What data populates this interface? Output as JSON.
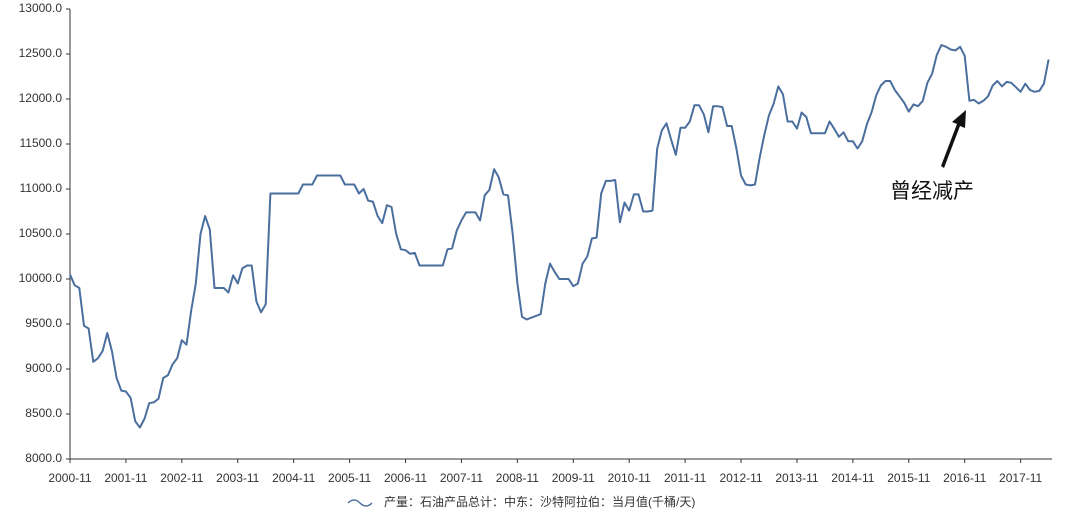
{
  "chart_data": {
    "type": "line",
    "categories": [
      "2000-11",
      null,
      null,
      null,
      null,
      null,
      null,
      null,
      null,
      null,
      null,
      null,
      "2001-11",
      null,
      null,
      null,
      null,
      null,
      null,
      null,
      null,
      null,
      null,
      null,
      "2002-11",
      null,
      null,
      null,
      null,
      null,
      null,
      null,
      null,
      null,
      null,
      null,
      "2003-11",
      null,
      null,
      null,
      null,
      null,
      null,
      null,
      null,
      null,
      null,
      null,
      "2004-11",
      null,
      null,
      null,
      null,
      null,
      null,
      null,
      null,
      null,
      null,
      null,
      "2005-11",
      null,
      null,
      null,
      null,
      null,
      null,
      null,
      null,
      null,
      null,
      null,
      "2006-11",
      null,
      null,
      null,
      null,
      null,
      null,
      null,
      null,
      null,
      null,
      null,
      "2007-11",
      null,
      null,
      null,
      null,
      null,
      null,
      null,
      null,
      null,
      null,
      null,
      "2008-11",
      null,
      null,
      null,
      null,
      null,
      null,
      null,
      null,
      null,
      null,
      null,
      "2009-11",
      null,
      null,
      null,
      null,
      null,
      null,
      null,
      null,
      null,
      null,
      null,
      "2010-11",
      null,
      null,
      null,
      null,
      null,
      null,
      null,
      null,
      null,
      null,
      null,
      "2011-11",
      null,
      null,
      null,
      null,
      null,
      null,
      null,
      null,
      null,
      null,
      null,
      "2012-11",
      null,
      null,
      null,
      null,
      null,
      null,
      null,
      null,
      null,
      null,
      null,
      "2013-11",
      null,
      null,
      null,
      null,
      null,
      null,
      null,
      null,
      null,
      null,
      null,
      "2014-11",
      null,
      null,
      null,
      null,
      null,
      null,
      null,
      null,
      null,
      null,
      null,
      "2015-11",
      null,
      null,
      null,
      null,
      null,
      null,
      null,
      null,
      null,
      null,
      null,
      "2016-11",
      null,
      null,
      null,
      null,
      null,
      null,
      null,
      null,
      null,
      null,
      null,
      "2017-11",
      null,
      null,
      null,
      null,
      null,
      null
    ],
    "series": [
      {
        "name": "产量：石油产品总计：中东：沙特阿拉伯：当月值(千桶/天)",
        "color": "#4a6f9e",
        "values": [
          10050,
          9930,
          9900,
          9480,
          9450,
          9080,
          9120,
          9200,
          9400,
          9200,
          8900,
          8760,
          8750,
          8680,
          8420,
          8350,
          8450,
          8620,
          8630,
          8670,
          8900,
          8930,
          9050,
          9120,
          9320,
          9270,
          9650,
          9950,
          10500,
          10700,
          10550,
          9900,
          9900,
          9900,
          9850,
          10040,
          9950,
          10120,
          10150,
          10150,
          9750,
          9630,
          9720,
          10950,
          10950,
          10950,
          10950,
          10950,
          10950,
          10950,
          11050,
          11050,
          11050,
          11150,
          11150,
          11150,
          11150,
          11150,
          11150,
          11050,
          11050,
          11050,
          10950,
          11000,
          10870,
          10860,
          10700,
          10620,
          10820,
          10800,
          10500,
          10330,
          10320,
          10280,
          10290,
          10150,
          10150,
          10150,
          10150,
          10150,
          10150,
          10330,
          10340,
          10540,
          10650,
          10740,
          10740,
          10740,
          10650,
          10930,
          10990,
          11220,
          11130,
          10940,
          10930,
          10500,
          9950,
          9580,
          9550,
          9570,
          9590,
          9610,
          9950,
          10170,
          10080,
          10000,
          10000,
          10000,
          9920,
          9950,
          10170,
          10250,
          10450,
          10460,
          10950,
          11090,
          11090,
          11100,
          10630,
          10850,
          10760,
          10940,
          10940,
          10750,
          10750,
          10760,
          11450,
          11650,
          11730,
          11550,
          11380,
          11680,
          11680,
          11750,
          11930,
          11930,
          11830,
          11630,
          11920,
          11920,
          11910,
          11700,
          11700,
          11450,
          11150,
          11050,
          11040,
          11050,
          11350,
          11600,
          11820,
          11950,
          12140,
          12050,
          11750,
          11750,
          11670,
          11850,
          11800,
          11620,
          11620,
          11620,
          11620,
          11750,
          11670,
          11580,
          11630,
          11530,
          11530,
          11450,
          11530,
          11720,
          11850,
          12040,
          12150,
          12200,
          12200,
          12100,
          12030,
          11960,
          11860,
          11940,
          11920,
          11980,
          12180,
          12280,
          12490,
          12600,
          12580,
          12550,
          12540,
          12580,
          12480,
          11980,
          11990,
          11950,
          11980,
          12030,
          12150,
          12200,
          12140,
          12190,
          12180,
          12130,
          12080,
          12170,
          12100,
          12080,
          12090,
          12170,
          12440
        ]
      }
    ],
    "ylim": [
      8000,
      13000
    ],
    "yticks": [
      {
        "value": 8000,
        "label": "8000.0"
      },
      {
        "value": 8500,
        "label": "8500.0"
      },
      {
        "value": 9000,
        "label": "9000.0"
      },
      {
        "value": 9500,
        "label": "9500.0"
      },
      {
        "value": 10000,
        "label": "10000.0"
      },
      {
        "value": 10500,
        "label": "10500.0"
      },
      {
        "value": 11000,
        "label": "11000.0"
      },
      {
        "value": 11500,
        "label": "11500.0"
      },
      {
        "value": 12000,
        "label": "12000.0"
      },
      {
        "value": 12500,
        "label": "12500.0"
      },
      {
        "value": 13000,
        "label": "13000.0"
      }
    ],
    "annotation": "曾经减产",
    "grid": false
  }
}
